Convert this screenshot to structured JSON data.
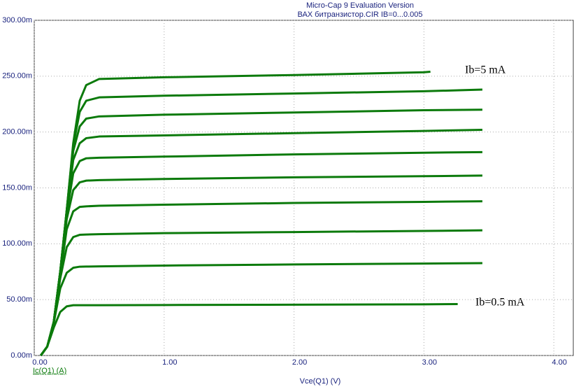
{
  "chart_data": {
    "type": "line",
    "title": "Micro-Cap 9 Evaluation Version",
    "subtitle": "ВАХ битранзистор.CIR IB=0...0.005",
    "x_label": "Vce(Q1) (V)",
    "y_label": "Ic(Q1) (A)",
    "annotations": [
      "Ib=5 mA",
      "Ib=0.5 mA"
    ],
    "color": "#0b7a0b",
    "grid": true,
    "xlim": [
      0,
      4.15
    ],
    "ylim": [
      0,
      0.3
    ],
    "xticks": [
      {
        "value": 0,
        "label": "0.00"
      },
      {
        "value": 1,
        "label": "1.00"
      },
      {
        "value": 2,
        "label": "2.00"
      },
      {
        "value": 3,
        "label": "3.00"
      },
      {
        "value": 4,
        "label": "4.00"
      }
    ],
    "yticks": [
      {
        "value": 0,
        "label": "0.00m"
      },
      {
        "value": 0.05,
        "label": "50.00m"
      },
      {
        "value": 0.1,
        "label": "100.00m"
      },
      {
        "value": 0.15,
        "label": "150.00m"
      },
      {
        "value": 0.2,
        "label": "200.00m"
      },
      {
        "value": 0.25,
        "label": "250.00m"
      },
      {
        "value": 0.3,
        "label": "300.00m"
      }
    ],
    "series": [
      {
        "x": [
          0.05,
          0.1,
          0.15,
          0.2,
          0.25,
          0.3,
          0.35,
          0.4,
          0.5,
          1,
          2,
          3,
          3.26
        ],
        "values": [
          0,
          0.008,
          0.025,
          0.039,
          0.044,
          0.045,
          0.045,
          0.045,
          0.045,
          0.0452,
          0.0455,
          0.0458,
          0.046
        ]
      },
      {
        "x": [
          0.05,
          0.1,
          0.15,
          0.2,
          0.25,
          0.3,
          0.35,
          0.4,
          0.5,
          1,
          2,
          3,
          3.45
        ],
        "values": [
          0,
          0.008,
          0.029,
          0.06,
          0.074,
          0.0785,
          0.0795,
          0.0796,
          0.0798,
          0.0805,
          0.0815,
          0.0823,
          0.0827
        ]
      },
      {
        "x": [
          0.05,
          0.1,
          0.15,
          0.2,
          0.25,
          0.3,
          0.35,
          0.4,
          0.5,
          1,
          2,
          3,
          3.45
        ],
        "values": [
          0,
          0.008,
          0.03,
          0.069,
          0.097,
          0.106,
          0.108,
          0.1083,
          0.1086,
          0.1095,
          0.1105,
          0.1115,
          0.112
        ]
      },
      {
        "x": [
          0.05,
          0.1,
          0.15,
          0.2,
          0.25,
          0.3,
          0.35,
          0.4,
          0.5,
          1,
          2,
          3,
          3.45
        ],
        "values": [
          0,
          0.008,
          0.03,
          0.072,
          0.113,
          0.129,
          0.133,
          0.1335,
          0.134,
          0.135,
          0.1365,
          0.1375,
          0.138
        ]
      },
      {
        "x": [
          0.05,
          0.1,
          0.15,
          0.2,
          0.25,
          0.3,
          0.35,
          0.4,
          0.5,
          1,
          2,
          3,
          3.45
        ],
        "values": [
          0,
          0.008,
          0.03,
          0.074,
          0.122,
          0.148,
          0.155,
          0.1565,
          0.157,
          0.158,
          0.1595,
          0.1605,
          0.161
        ]
      },
      {
        "x": [
          0.05,
          0.1,
          0.15,
          0.2,
          0.25,
          0.3,
          0.35,
          0.4,
          0.5,
          1,
          2,
          3,
          3.45
        ],
        "values": [
          0,
          0.008,
          0.03,
          0.075,
          0.127,
          0.163,
          0.174,
          0.1765,
          0.177,
          0.178,
          0.18,
          0.1815,
          0.182
        ]
      },
      {
        "x": [
          0.05,
          0.1,
          0.15,
          0.2,
          0.25,
          0.3,
          0.35,
          0.4,
          0.5,
          1,
          2,
          3,
          3.45
        ],
        "values": [
          0,
          0.008,
          0.03,
          0.075,
          0.129,
          0.175,
          0.19,
          0.1945,
          0.196,
          0.197,
          0.199,
          0.201,
          0.202
        ]
      },
      {
        "x": [
          0.05,
          0.1,
          0.15,
          0.2,
          0.25,
          0.3,
          0.35,
          0.4,
          0.5,
          1,
          2,
          3,
          3.45
        ],
        "values": [
          0,
          0.008,
          0.03,
          0.075,
          0.13,
          0.183,
          0.205,
          0.212,
          0.214,
          0.2155,
          0.2175,
          0.2195,
          0.22
        ]
      },
      {
        "x": [
          0.05,
          0.1,
          0.15,
          0.2,
          0.25,
          0.3,
          0.35,
          0.4,
          0.5,
          1,
          2,
          3,
          3.45
        ],
        "values": [
          0,
          0.008,
          0.03,
          0.075,
          0.13,
          0.188,
          0.218,
          0.228,
          0.231,
          0.2325,
          0.2345,
          0.2365,
          0.238
        ]
      },
      {
        "x": [
          0.05,
          0.1,
          0.15,
          0.2,
          0.25,
          0.3,
          0.35,
          0.4,
          0.5,
          1,
          2,
          3,
          3.05
        ],
        "values": [
          0,
          0.008,
          0.03,
          0.075,
          0.13,
          0.19,
          0.228,
          0.242,
          0.2475,
          0.249,
          0.251,
          0.2535,
          0.254
        ]
      }
    ]
  }
}
